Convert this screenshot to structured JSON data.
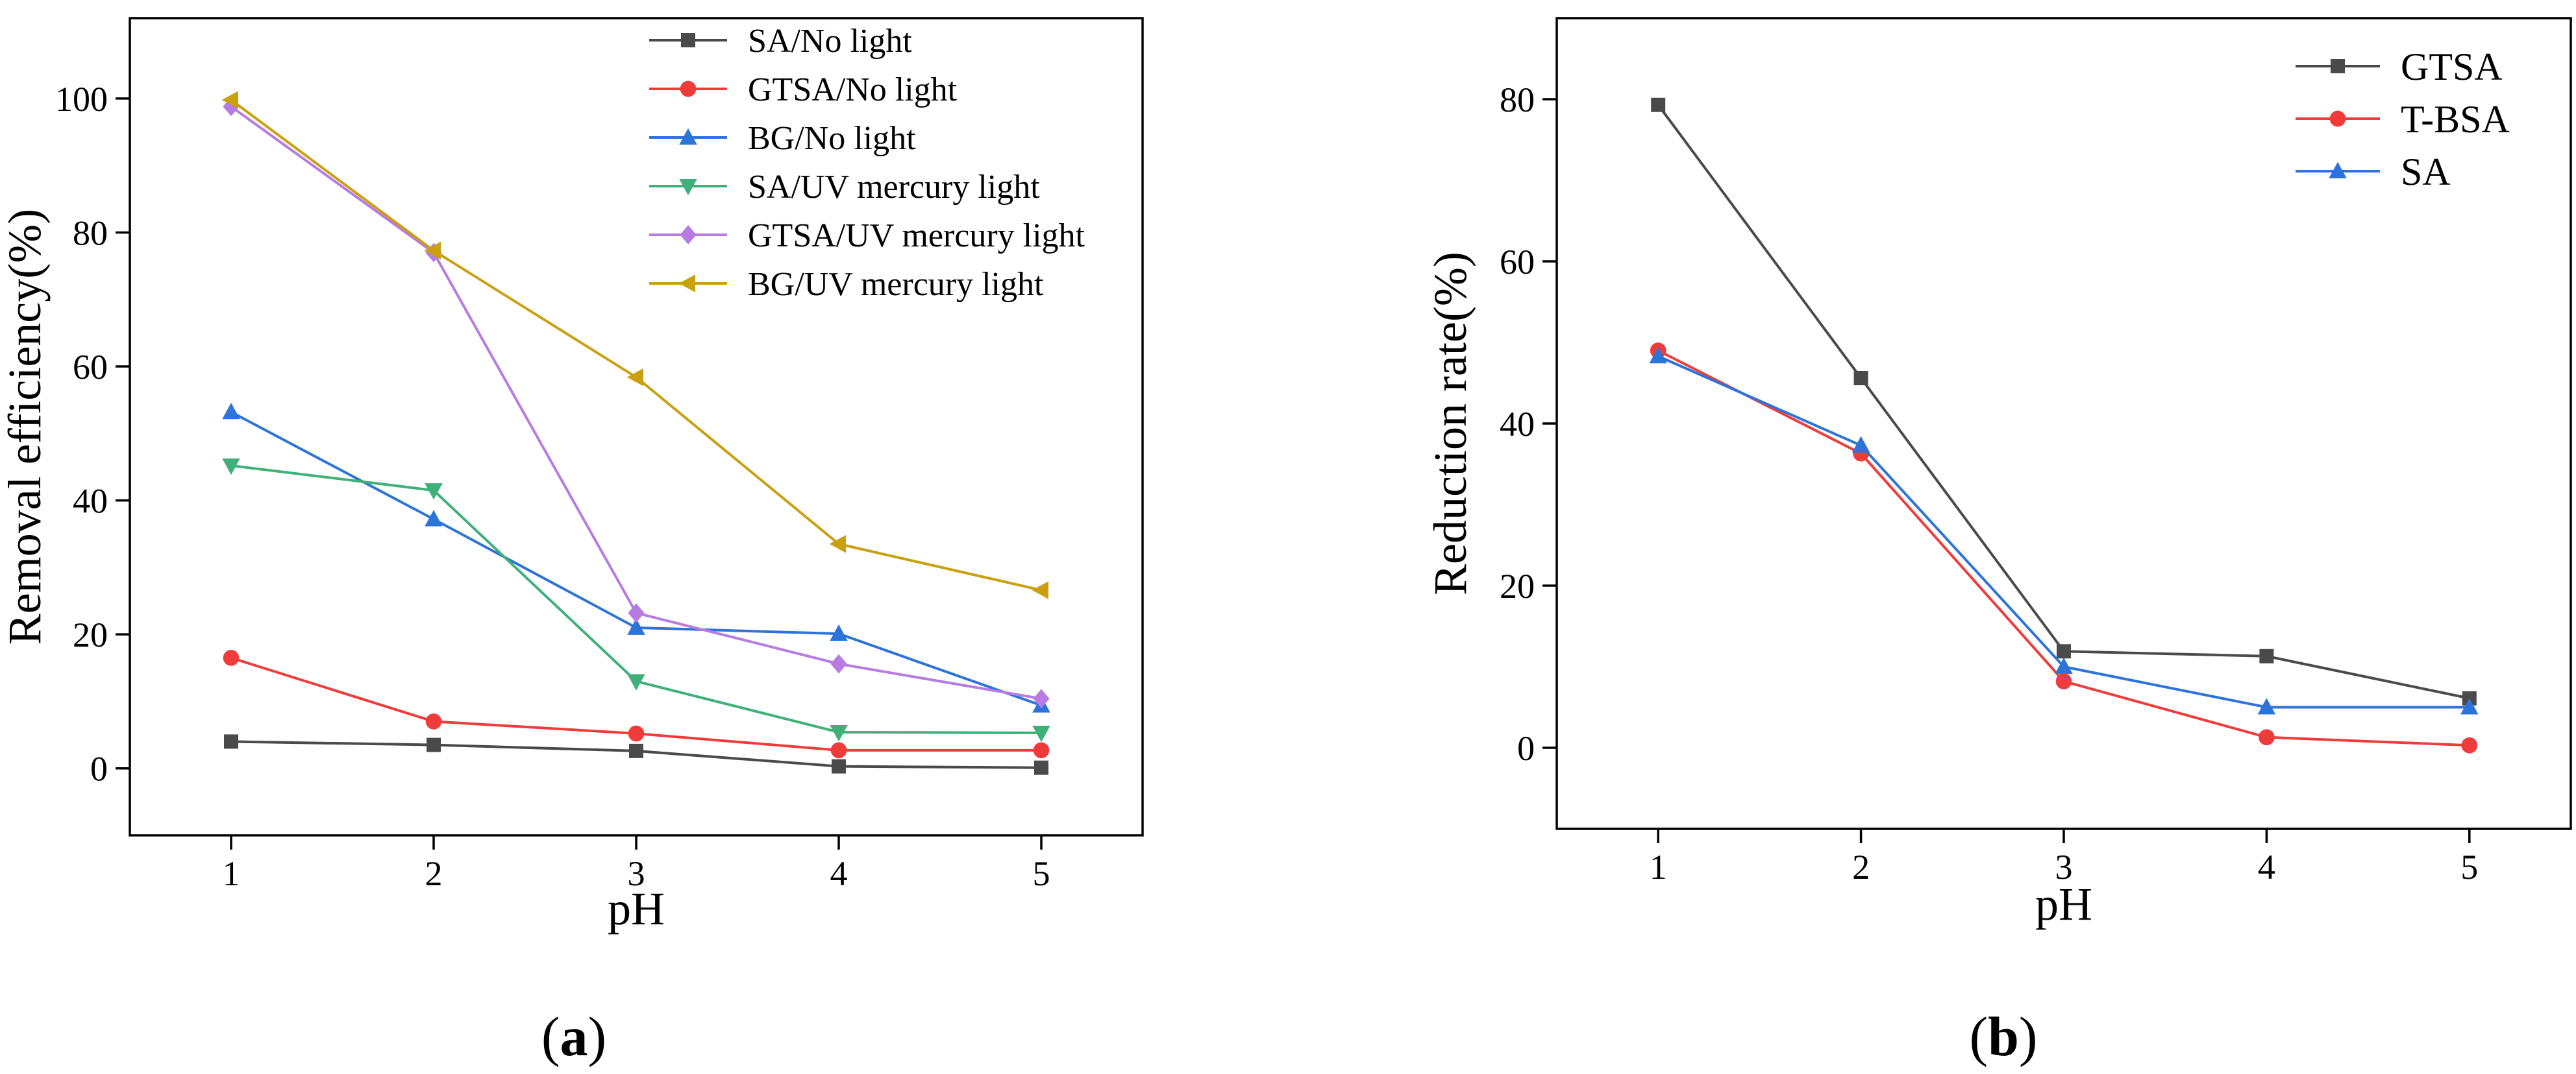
{
  "colors": {
    "black": "#4a4a4a",
    "red": "#f03b3b",
    "blue": "#2d74d9",
    "green": "#3fb07a",
    "violet": "#b77be3",
    "gold": "#c9a00f"
  },
  "chart_data": [
    {
      "id": "a",
      "type": "line",
      "caption": {
        "open": "(",
        "letter": "a",
        "close": ")"
      },
      "title": "",
      "xlabel": "pH",
      "ylabel": "Removal efficiency(%)",
      "x": [
        1,
        2,
        3,
        4,
        5
      ],
      "xlim": [
        0.5,
        5.5
      ],
      "ylim": [
        -10,
        112
      ],
      "xticks": [
        1,
        2,
        3,
        4,
        5
      ],
      "yticks": [
        0,
        20,
        40,
        60,
        80,
        100
      ],
      "legend_position": "top-right",
      "series": [
        {
          "name": "SA/No light",
          "marker": "square",
          "color": "black",
          "values": [
            4.0,
            3.5,
            2.6,
            0.3,
            0.1
          ]
        },
        {
          "name": "GTSA/No light",
          "marker": "circle",
          "color": "red",
          "values": [
            16.5,
            7.0,
            5.2,
            2.7,
            2.7
          ]
        },
        {
          "name": "BG/No light",
          "marker": "triangle-up",
          "color": "blue",
          "values": [
            53.2,
            37.2,
            21.0,
            20.1,
            9.4
          ]
        },
        {
          "name": "SA/UV mercury light",
          "marker": "triangle-down",
          "color": "green",
          "values": [
            45.2,
            41.5,
            13.0,
            5.4,
            5.3
          ]
        },
        {
          "name": "GTSA/UV mercury light",
          "marker": "diamond",
          "color": "violet",
          "values": [
            98.8,
            77.0,
            23.2,
            15.6,
            10.4
          ]
        },
        {
          "name": "BG/UV mercury light",
          "marker": "triangle-left",
          "color": "gold",
          "values": [
            99.8,
            77.3,
            58.4,
            33.5,
            26.6
          ]
        }
      ]
    },
    {
      "id": "b",
      "type": "line",
      "caption": {
        "open": "(",
        "letter": "b",
        "close": ")"
      },
      "title": "",
      "xlabel": "pH",
      "ylabel": "Reduction rate(%)",
      "x": [
        1,
        2,
        3,
        4,
        5
      ],
      "xlim": [
        0.5,
        5.5
      ],
      "ylim": [
        -10,
        90
      ],
      "xticks": [
        1,
        2,
        3,
        4,
        5
      ],
      "yticks": [
        0,
        20,
        40,
        60,
        80
      ],
      "legend_position": "top-right",
      "series": [
        {
          "name": "GTSA",
          "marker": "square",
          "color": "black",
          "values": [
            79.3,
            45.6,
            11.9,
            11.3,
            6.1
          ]
        },
        {
          "name": "T-BSA",
          "marker": "circle",
          "color": "red",
          "values": [
            49.0,
            36.3,
            8.2,
            1.3,
            0.3
          ]
        },
        {
          "name": "SA",
          "marker": "triangle-up",
          "color": "blue",
          "values": [
            48.3,
            37.3,
            10.0,
            5.0,
            5.0
          ]
        }
      ]
    }
  ]
}
